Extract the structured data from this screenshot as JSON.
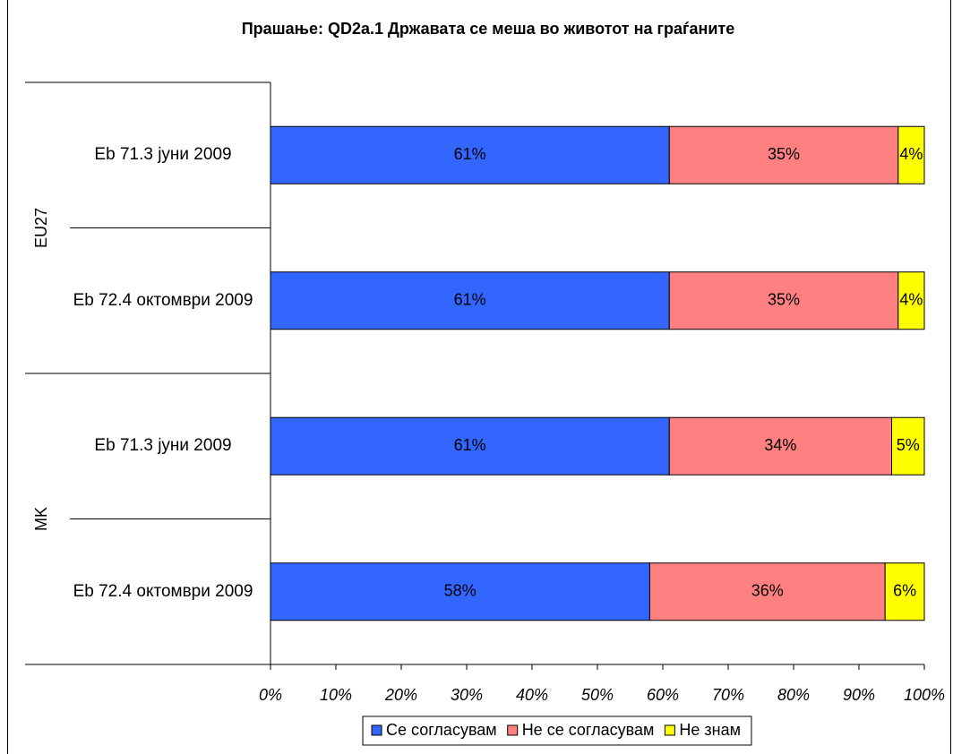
{
  "chart_data": {
    "type": "stacked_barh",
    "title": "Прашање: QD2a.1  Државата се меша во животот на граѓаните",
    "groups": [
      {
        "name": "EU27",
        "categories": [
          "Eb 71.3 јуни 2009",
          "Eb 72.4 октомври 2009"
        ]
      },
      {
        "name": "MK",
        "categories": [
          "Eb 71.3 јуни 2009",
          "Eb 72.4 октомври 2009"
        ]
      }
    ],
    "series": [
      {
        "name": "Се согласувам",
        "color": "#3366ff",
        "values": [
          61,
          61,
          61,
          58
        ],
        "value_labels": [
          "61%",
          "61%",
          "61%",
          "58%"
        ]
      },
      {
        "name": "Не се согласувам",
        "color": "#ff8080",
        "values": [
          35,
          35,
          34,
          36
        ],
        "value_labels": [
          "35%",
          "35%",
          "34%",
          "36%"
        ]
      },
      {
        "name": "Не знам",
        "color": "#ffff00",
        "values": [
          4,
          4,
          5,
          6
        ],
        "value_labels": [
          "4%",
          "4%",
          "5%",
          "6%"
        ]
      }
    ],
    "xlim": [
      0,
      100
    ],
    "xticks": [
      {
        "value": 0,
        "label": "0%"
      },
      {
        "value": 10,
        "label": "10%"
      },
      {
        "value": 20,
        "label": "20%"
      },
      {
        "value": 30,
        "label": "30%"
      },
      {
        "value": 40,
        "label": "40%"
      },
      {
        "value": 50,
        "label": "50%"
      },
      {
        "value": 60,
        "label": "60%"
      },
      {
        "value": 70,
        "label": "70%"
      },
      {
        "value": 80,
        "label": "80%"
      },
      {
        "value": 90,
        "label": "90%"
      },
      {
        "value": 100,
        "label": "100%"
      }
    ],
    "legend": "bottom"
  }
}
